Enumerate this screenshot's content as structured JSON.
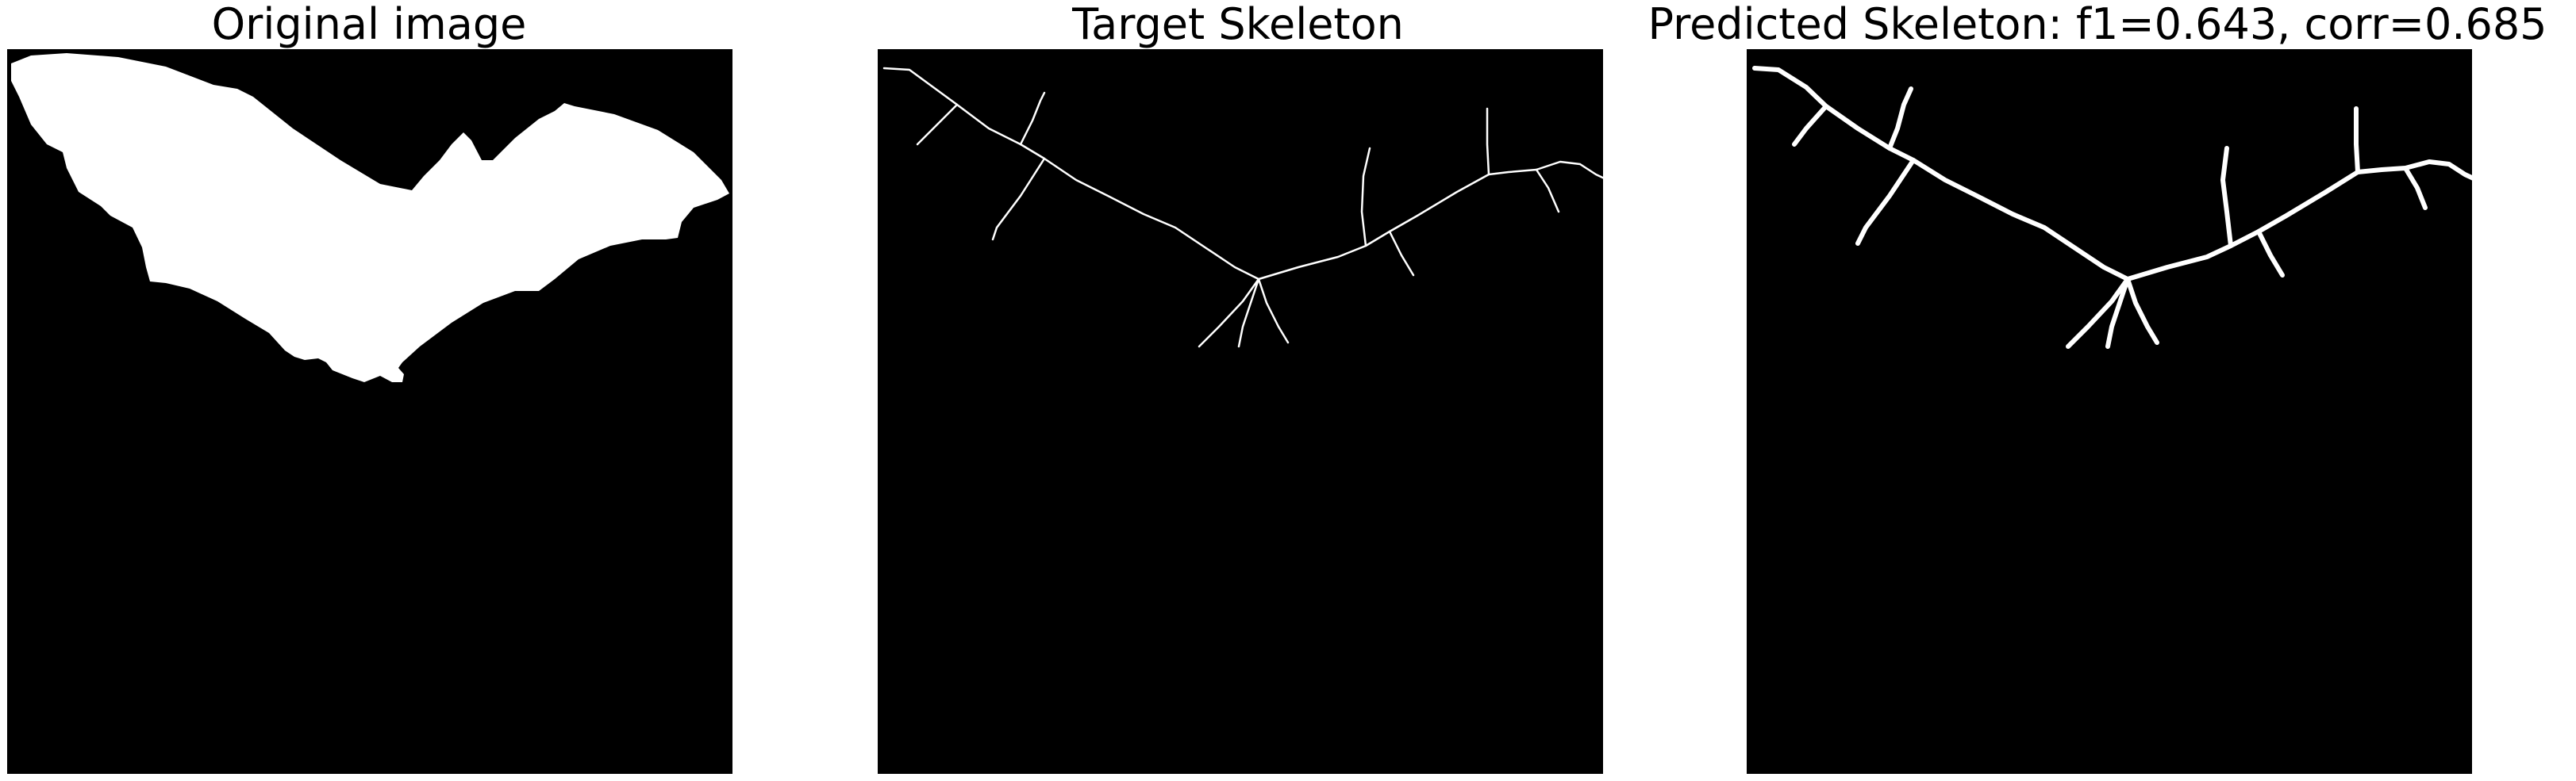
{
  "panels": [
    {
      "title": "Original image"
    },
    {
      "title": "Target Skeleton"
    },
    {
      "title": "Predicted Skeleton: f1=0.643, corr=0.685"
    }
  ],
  "colors": {
    "background": "#000000",
    "foreground": "#ffffff"
  }
}
